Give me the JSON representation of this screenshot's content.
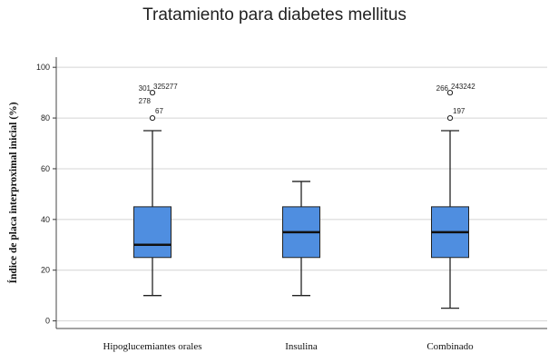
{
  "chart_data": {
    "type": "boxplot",
    "title": "Tratamiento para diabetes mellitus",
    "xlabel": "",
    "ylabel": "Índice de placa interproximal inicial (%)",
    "ylim": [
      -3,
      104
    ],
    "yticks": [
      0,
      20,
      40,
      60,
      80,
      100
    ],
    "grid": true,
    "box_color": "#4f8ee0",
    "categories": [
      "Hipoglucemiantes orales",
      "Insulina",
      "Combinado"
    ],
    "boxes": [
      {
        "category": "Hipoglucemiantes orales",
        "whisker_low": 10,
        "q1": 25,
        "median": 30,
        "q3": 45,
        "whisker_high": 75,
        "outliers": [
          {
            "value": 80,
            "label": "67"
          },
          {
            "value": 90,
            "label": "301"
          },
          {
            "value": 90,
            "label": "325277"
          },
          {
            "value": 90,
            "label": "278"
          }
        ]
      },
      {
        "category": "Insulina",
        "whisker_low": 10,
        "q1": 25,
        "median": 35,
        "q3": 45,
        "whisker_high": 55,
        "outliers": []
      },
      {
        "category": "Combinado",
        "whisker_low": 5,
        "q1": 25,
        "median": 35,
        "q3": 45,
        "whisker_high": 75,
        "outliers": [
          {
            "value": 80,
            "label": "197"
          },
          {
            "value": 90,
            "label": "266"
          },
          {
            "value": 90,
            "label": "243242"
          }
        ]
      }
    ]
  }
}
